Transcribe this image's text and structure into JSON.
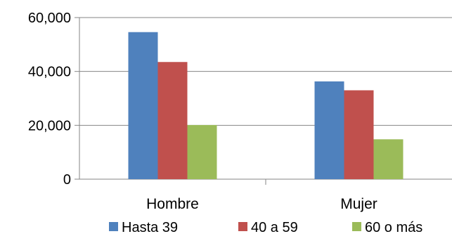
{
  "chart_data": {
    "type": "bar",
    "categories": [
      "Hombre",
      "Mujer"
    ],
    "series": [
      {
        "name": "Hasta 39",
        "values": [
          54600,
          36300
        ],
        "color": "#4F81BD"
      },
      {
        "name": "40 a 59",
        "values": [
          43500,
          33000
        ],
        "color": "#C0504D"
      },
      {
        "name": "60 o más",
        "values": [
          20100,
          14800
        ],
        "color": "#9BBB59"
      }
    ],
    "yticks": [
      {
        "value": 0,
        "label": "0"
      },
      {
        "value": 20000,
        "label": "20,000"
      },
      {
        "value": 40000,
        "label": "40,000"
      },
      {
        "value": 60000,
        "label": "60,000"
      }
    ],
    "ylim": [
      0,
      60000
    ],
    "grid": true,
    "legend_position": "bottom",
    "title": "",
    "xlabel": "",
    "ylabel": ""
  }
}
